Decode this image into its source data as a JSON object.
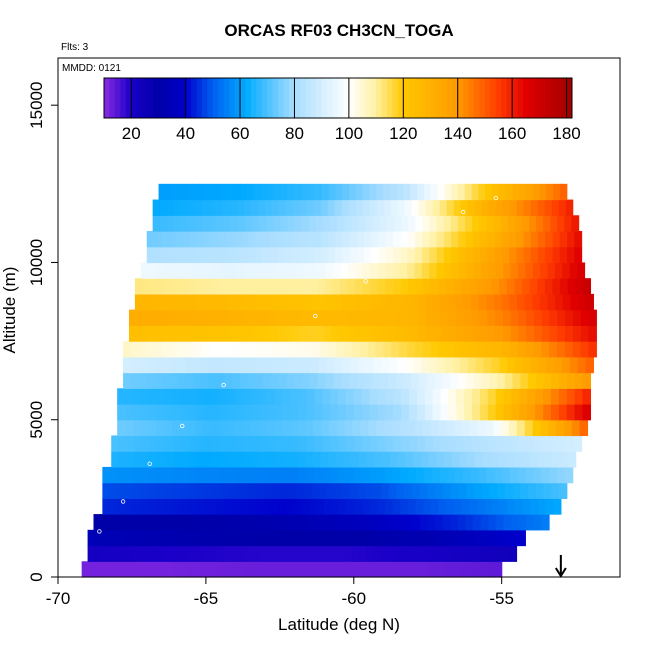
{
  "chart_data": {
    "type": "heatmap",
    "title": "ORCAS RF03 CH3CN_TOGA",
    "flights_note": "Flts: 3",
    "mmdd_note": "MMDD: 0121",
    "xlabel": "Latitude (deg N)",
    "ylabel": "Altitude (m)",
    "xlim": [
      -70,
      -51
    ],
    "ylim": [
      0,
      16500
    ],
    "x_ticks": [
      -70,
      -65,
      -60,
      -55
    ],
    "x_tick_labels": [
      "-70",
      "-65",
      "-60",
      "-55"
    ],
    "y_ticks": [
      0,
      5000,
      10000,
      15000
    ],
    "y_tick_labels": [
      "0",
      "5000",
      "10000",
      "15000"
    ],
    "colorbar": {
      "min": 10,
      "max": 182,
      "ticks": [
        20,
        40,
        60,
        80,
        100,
        120,
        140,
        160,
        180
      ],
      "tick_labels": [
        "20",
        "40",
        "60",
        "80",
        "100",
        "120",
        "140",
        "160",
        "180"
      ],
      "stops": [
        {
          "v": 10,
          "color": "#8a2be2"
        },
        {
          "v": 20,
          "color": "#1a00c8"
        },
        {
          "v": 30,
          "color": "#0000a8"
        },
        {
          "v": 40,
          "color": "#0000cc"
        },
        {
          "v": 50,
          "color": "#0060f0"
        },
        {
          "v": 62,
          "color": "#00aaff"
        },
        {
          "v": 80,
          "color": "#a8ddff"
        },
        {
          "v": 100,
          "color": "#ffffff"
        },
        {
          "v": 110,
          "color": "#fff0a0"
        },
        {
          "v": 120,
          "color": "#ffc800"
        },
        {
          "v": 140,
          "color": "#ff9a00"
        },
        {
          "v": 155,
          "color": "#ff3c00"
        },
        {
          "v": 165,
          "color": "#e00000"
        },
        {
          "v": 182,
          "color": "#a00000"
        }
      ]
    },
    "grid": false,
    "altitude_bands": [
      {
        "alt": 250,
        "lat_min": -69.2,
        "lat_max": -55.0,
        "values": [
          12,
          12,
          13,
          13,
          13,
          14
        ]
      },
      {
        "alt": 750,
        "lat_min": -69.0,
        "lat_max": -54.5,
        "values": [
          22,
          20,
          19,
          19,
          21,
          24
        ]
      },
      {
        "alt": 1250,
        "lat_min": -69.0,
        "lat_max": -54.2,
        "values": [
          34,
          32,
          30,
          30,
          33,
          40
        ]
      },
      {
        "alt": 1750,
        "lat_min": -68.8,
        "lat_max": -53.4,
        "values": [
          30,
          30,
          32,
          36,
          44,
          55
        ]
      },
      {
        "alt": 2250,
        "lat_min": -68.5,
        "lat_max": -53.0,
        "values": [
          44,
          42,
          40,
          44,
          52,
          62
        ]
      },
      {
        "alt": 2750,
        "lat_min": -68.5,
        "lat_max": -52.8,
        "values": [
          48,
          46,
          44,
          48,
          60,
          70
        ]
      },
      {
        "alt": 3250,
        "lat_min": -68.5,
        "lat_max": -52.6,
        "values": [
          58,
          56,
          55,
          60,
          68,
          78
        ]
      },
      {
        "alt": 3750,
        "lat_min": -68.2,
        "lat_max": -52.5,
        "values": [
          65,
          62,
          64,
          70,
          80,
          88
        ]
      },
      {
        "alt": 4250,
        "lat_min": -68.2,
        "lat_max": -52.3,
        "values": [
          70,
          66,
          68,
          76,
          84,
          90
        ]
      },
      {
        "alt": 4750,
        "lat_min": -68.0,
        "lat_max": -52.1,
        "values": [
          74,
          68,
          72,
          82,
          96,
          150
        ]
      },
      {
        "alt": 5250,
        "lat_min": -68.0,
        "lat_max": -52.0,
        "values": [
          70,
          66,
          70,
          80,
          120,
          168
        ]
      },
      {
        "alt": 5750,
        "lat_min": -68.0,
        "lat_max": -52.0,
        "values": [
          66,
          64,
          70,
          84,
          118,
          160
        ]
      },
      {
        "alt": 6250,
        "lat_min": -67.8,
        "lat_max": -52.0,
        "values": [
          74,
          70,
          76,
          88,
          108,
          140
        ]
      },
      {
        "alt": 6750,
        "lat_min": -67.8,
        "lat_max": -51.9,
        "values": [
          90,
          86,
          88,
          100,
          118,
          150
        ]
      },
      {
        "alt": 7250,
        "lat_min": -67.8,
        "lat_max": -51.8,
        "values": [
          106,
          100,
          102,
          116,
          128,
          158
        ]
      },
      {
        "alt": 7750,
        "lat_min": -67.6,
        "lat_max": -51.8,
        "values": [
          124,
          122,
          118,
          126,
          140,
          164
        ]
      },
      {
        "alt": 8250,
        "lat_min": -67.6,
        "lat_max": -51.8,
        "values": [
          132,
          130,
          126,
          128,
          144,
          168
        ]
      },
      {
        "alt": 8750,
        "lat_min": -67.4,
        "lat_max": -51.9,
        "values": [
          128,
          126,
          122,
          128,
          146,
          170
        ]
      },
      {
        "alt": 9250,
        "lat_min": -67.4,
        "lat_max": -52.0,
        "values": [
          112,
          110,
          110,
          120,
          142,
          172
        ]
      },
      {
        "alt": 9750,
        "lat_min": -67.2,
        "lat_max": -52.2,
        "values": [
          96,
          94,
          96,
          110,
          138,
          168
        ]
      },
      {
        "alt": 10250,
        "lat_min": -67.0,
        "lat_max": -52.3,
        "values": [
          82,
          84,
          90,
          106,
          136,
          166
        ]
      },
      {
        "alt": 10750,
        "lat_min": -67.0,
        "lat_max": -52.3,
        "values": [
          74,
          78,
          84,
          100,
          130,
          164
        ]
      },
      {
        "alt": 11250,
        "lat_min": -66.8,
        "lat_max": -52.4,
        "values": [
          68,
          72,
          80,
          96,
          126,
          162
        ]
      },
      {
        "alt": 11750,
        "lat_min": -66.8,
        "lat_max": -52.6,
        "values": [
          62,
          66,
          74,
          96,
          132,
          160
        ]
      },
      {
        "alt": 12250,
        "lat_min": -66.6,
        "lat_max": -52.8,
        "values": [
          60,
          62,
          68,
          84,
          120,
          150
        ]
      }
    ],
    "flight_path_x": [
      -69.3,
      -68.6,
      -67.8,
      -66.9,
      -65.8,
      -64.4,
      -62.9,
      -61.3,
      -59.6,
      -58.0,
      -56.3,
      -55.2
    ],
    "flight_path_y": [
      150,
      1450,
      2400,
      3600,
      4800,
      6100,
      7200,
      8300,
      9400,
      10500,
      11600,
      12050
    ],
    "marker": {
      "lat": -53.0,
      "alt": 700,
      "label": "arrow"
    }
  }
}
